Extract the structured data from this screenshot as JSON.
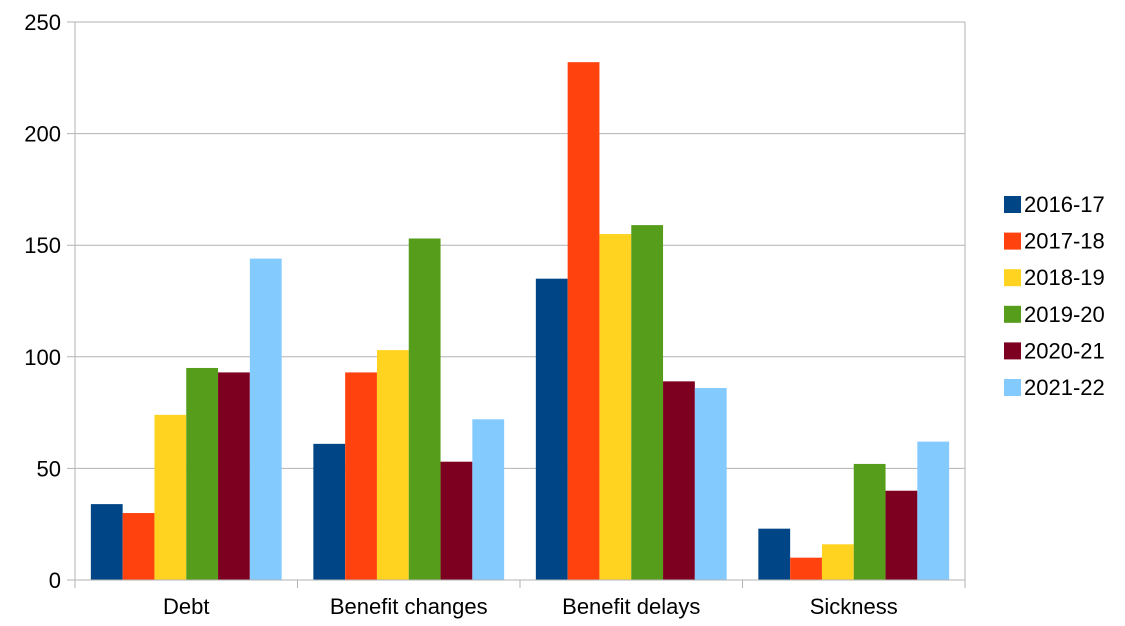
{
  "chart_data": {
    "type": "bar",
    "categories": [
      "Debt",
      "Benefit changes",
      "Benefit delays",
      "Sickness"
    ],
    "series": [
      {
        "name": "2016-17",
        "color": "#004586",
        "values": [
          34,
          61,
          135,
          23
        ]
      },
      {
        "name": "2017-18",
        "color": "#ff420e",
        "values": [
          30,
          93,
          232,
          10
        ]
      },
      {
        "name": "2018-19",
        "color": "#ffd320",
        "values": [
          74,
          103,
          155,
          16
        ]
      },
      {
        "name": "2019-20",
        "color": "#579d1c",
        "values": [
          95,
          153,
          159,
          52
        ]
      },
      {
        "name": "2020-21",
        "color": "#7e0021",
        "values": [
          93,
          53,
          89,
          40
        ]
      },
      {
        "name": "2021-22",
        "color": "#83caff",
        "values": [
          144,
          72,
          86,
          62
        ]
      }
    ],
    "yticks": [
      "0",
      "50",
      "100",
      "150",
      "200",
      "250"
    ],
    "ylim": [
      0,
      250
    ],
    "grid": true,
    "legend_position": "right"
  }
}
